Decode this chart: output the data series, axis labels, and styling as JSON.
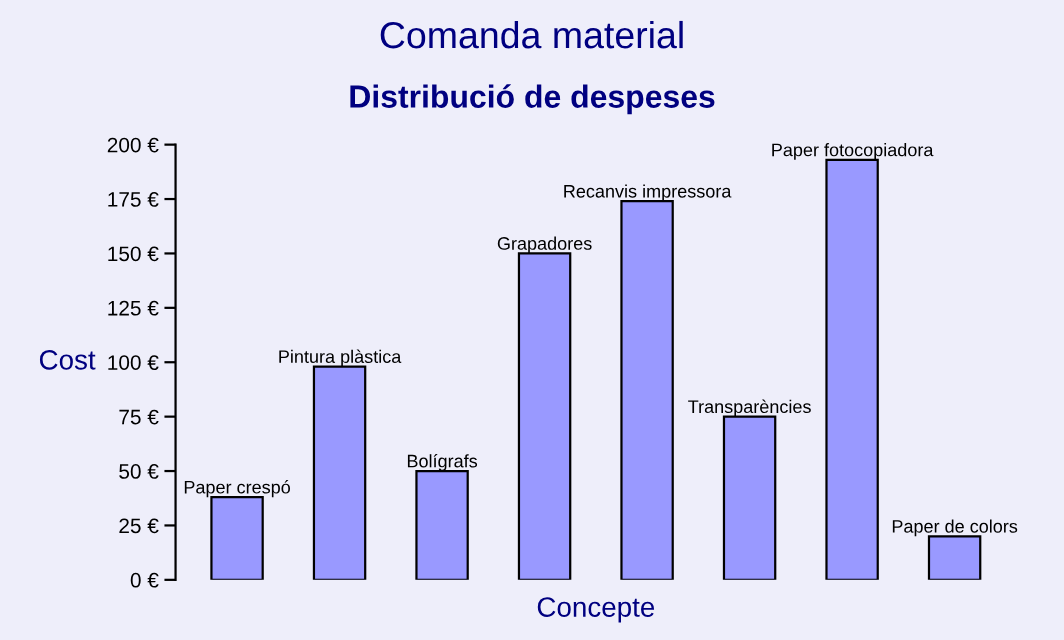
{
  "chart_data": {
    "type": "bar",
    "title": "Comanda material",
    "subtitle": "Distribució de despeses",
    "xlabel": "Concepte",
    "ylabel": "Cost",
    "categories": [
      "Paper crespó",
      "Pintura plàstica",
      "Bolígrafs",
      "Grapadores",
      "Recanvis impressora",
      "Transparències",
      "Paper fotocopiadora",
      "Paper de colors"
    ],
    "values": [
      38,
      98,
      50,
      150,
      174,
      75,
      193,
      20
    ],
    "color": "#9999ff",
    "ylim": [
      0,
      200
    ],
    "yticks": [
      {
        "value": 0,
        "label": "0 €"
      },
      {
        "value": 25,
        "label": "25 €"
      },
      {
        "value": 50,
        "label": "50 €"
      },
      {
        "value": 75,
        "label": "75 €"
      },
      {
        "value": 100,
        "label": "100 €"
      },
      {
        "value": 125,
        "label": "125 €"
      },
      {
        "value": 150,
        "label": "150 €"
      },
      {
        "value": 175,
        "label": "175 €"
      },
      {
        "value": 200,
        "label": "200 €"
      }
    ],
    "grid": false,
    "legend": false
  }
}
